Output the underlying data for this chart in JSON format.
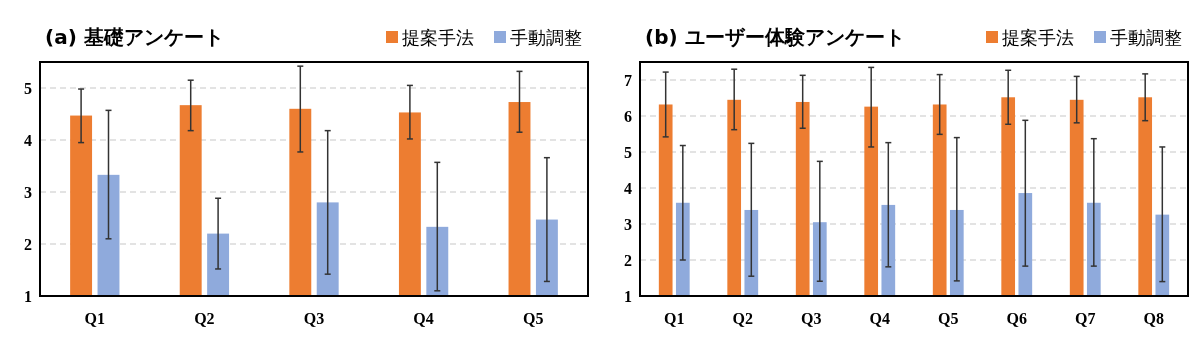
{
  "chart_data": [
    {
      "type": "bar",
      "title": "(a) 基礎アンケート",
      "categories": [
        "Q1",
        "Q2",
        "Q3",
        "Q4",
        "Q5"
      ],
      "ylim": [
        1,
        5.5
      ],
      "yticks": [
        1,
        2,
        3,
        4,
        5
      ],
      "grid": "y",
      "legend": "top right",
      "series": [
        {
          "name": "提案手法",
          "color": "#ed7d31",
          "values": [
            4.47,
            4.67,
            4.6,
            4.53,
            4.73
          ],
          "errors": [
            [
              3.95,
              4.98
            ],
            [
              4.18,
              5.15
            ],
            [
              3.77,
              5.42
            ],
            [
              4.02,
              5.05
            ],
            [
              4.15,
              5.32
            ]
          ]
        },
        {
          "name": "手動調整",
          "color": "#8faadc",
          "values": [
            3.33,
            2.2,
            2.8,
            2.33,
            2.47
          ],
          "errors": [
            [
              2.1,
              4.57
            ],
            [
              1.52,
              2.88
            ],
            [
              1.42,
              4.18
            ],
            [
              1.1,
              3.57
            ],
            [
              1.28,
              3.66
            ]
          ]
        }
      ]
    },
    {
      "type": "bar",
      "title": "(b) ユーザー体験アンケート",
      "categories": [
        "Q1",
        "Q2",
        "Q3",
        "Q4",
        "Q5",
        "Q6",
        "Q7",
        "Q8"
      ],
      "ylim": [
        1,
        7.5
      ],
      "yticks": [
        1,
        2,
        3,
        4,
        5,
        6,
        7
      ],
      "grid": "y",
      "legend": "top right",
      "series": [
        {
          "name": "提案手法",
          "color": "#ed7d31",
          "values": [
            6.32,
            6.45,
            6.39,
            6.26,
            6.32,
            6.52,
            6.45,
            6.52
          ],
          "errors": [
            [
              5.42,
              7.22
            ],
            [
              5.62,
              7.3
            ],
            [
              5.66,
              7.13
            ],
            [
              5.14,
              7.35
            ],
            [
              5.49,
              7.15
            ],
            [
              5.77,
              7.27
            ],
            [
              5.81,
              7.1
            ],
            [
              5.87,
              7.17
            ]
          ]
        },
        {
          "name": "手動調整",
          "color": "#8faadc",
          "values": [
            3.59,
            3.39,
            3.05,
            3.53,
            3.39,
            3.86,
            3.59,
            3.26
          ],
          "errors": [
            [
              2.0,
              5.18
            ],
            [
              1.55,
              5.24
            ],
            [
              1.41,
              4.74
            ],
            [
              1.81,
              5.26
            ],
            [
              1.42,
              5.4
            ],
            [
              1.83,
              5.88
            ],
            [
              1.83,
              5.37
            ],
            [
              1.4,
              5.14
            ]
          ]
        }
      ]
    }
  ]
}
